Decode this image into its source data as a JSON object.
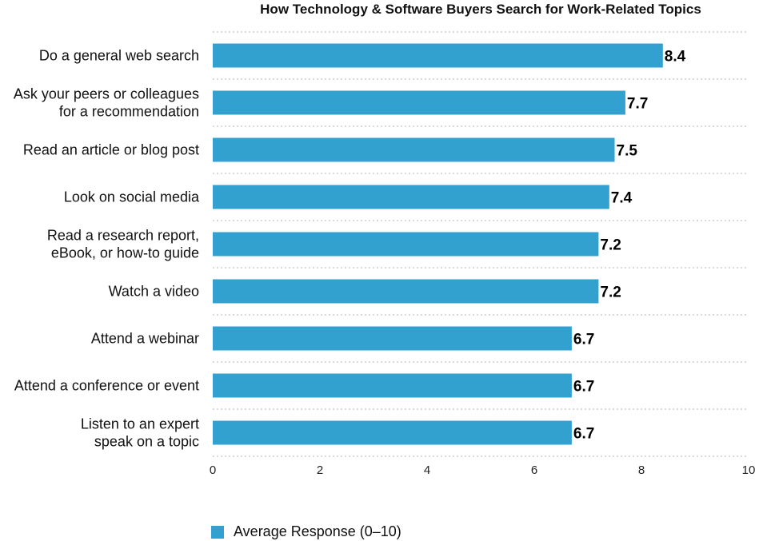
{
  "chart_data": {
    "type": "bar",
    "orientation": "horizontal",
    "title": "How Technology & Software Buyers Search for Work-Related Topics",
    "categories": [
      [
        "Do a general web search"
      ],
      [
        "Ask your peers or colleagues",
        "for a recommendation"
      ],
      [
        "Read an article or blog post"
      ],
      [
        "Look on social media"
      ],
      [
        "Read a research report,",
        "eBook, or how-to guide"
      ],
      [
        "Watch a video"
      ],
      [
        "Attend a webinar"
      ],
      [
        "Attend a conference or event"
      ],
      [
        "Listen to an expert",
        "speak on a topic"
      ]
    ],
    "series": [
      {
        "name": "Average Response (0–10)",
        "values": [
          8.4,
          7.7,
          7.5,
          7.4,
          7.2,
          7.2,
          6.7,
          6.7,
          6.7
        ]
      }
    ],
    "value_labels": [
      "8.4",
      "7.7",
      "7.5",
      "7.4",
      "7.2",
      "7.2",
      "6.7",
      "6.7",
      "6.7"
    ],
    "xlim": [
      0,
      10
    ],
    "xticks": [
      0,
      2,
      4,
      6,
      8,
      10
    ],
    "grid": "horizontal dotted",
    "legend_position": "bottom-left",
    "colors": {
      "bar": "#33a1cf",
      "grid": "#b5b5b5"
    }
  }
}
